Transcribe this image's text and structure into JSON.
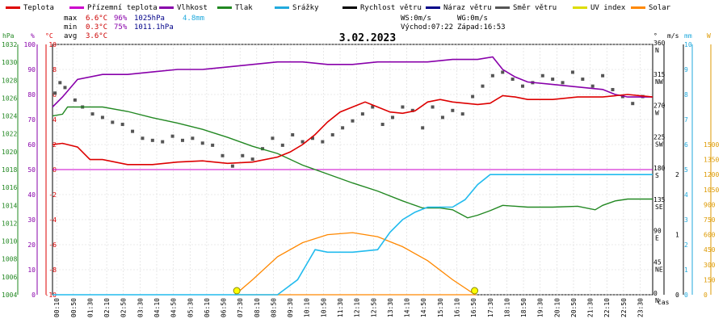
{
  "chart_data": {
    "type": "line",
    "title": "3.02.2023",
    "legend": [
      {
        "name": "Teplota",
        "color": "#dd0000"
      },
      {
        "name": "Přízemní teplota",
        "color": "#cc00cc"
      },
      {
        "name": "Vlhkost",
        "color": "#8800aa"
      },
      {
        "name": "Tlak",
        "color": "#228822"
      },
      {
        "name": "Srážky",
        "color": "#22aadd"
      },
      {
        "name": "Rychlost větru",
        "color": "#000000"
      },
      {
        "name": "Náraz větru",
        "color": "#000088"
      },
      {
        "name": "Směr větru",
        "color": "#555555"
      },
      {
        "name": "UV index",
        "color": "#dddd00"
      },
      {
        "name": "Solar",
        "color": "#ff8800"
      }
    ],
    "stats": {
      "max": {
        "label": "max",
        "temp": "6.6°C",
        "hum": "96%",
        "press": "1025hPa",
        "rain": "4.8mm"
      },
      "min": {
        "label": "min",
        "temp": "0.3°C",
        "hum": "75%",
        "press": "1011.1hPa"
      },
      "avg": {
        "label": "avg",
        "temp": "3.6°C"
      }
    },
    "info": {
      "ws": "WS:0m/s",
      "wg": "WG:0m/s",
      "sunrise": "Východ:07:22",
      "sunset": "Západ:16:53"
    },
    "axes": {
      "hpa": {
        "unit": "hPa",
        "ticks": [
          1004,
          1006,
          1008,
          1010,
          1012,
          1014,
          1016,
          1018,
          1020,
          1022,
          1024,
          1026,
          1028,
          1030,
          1032
        ]
      },
      "pct": {
        "unit": "%",
        "ticks": [
          0,
          10,
          20,
          30,
          40,
          50,
          60,
          70,
          80,
          90,
          100
        ]
      },
      "temp": {
        "unit": "°C",
        "ticks": [
          -10,
          -8,
          -6,
          -4,
          -2,
          0,
          2,
          4,
          6,
          8,
          10
        ]
      },
      "deg": {
        "unit": "°",
        "ticks": [
          "0",
          "45",
          "90",
          "135",
          "180",
          "225",
          "270",
          "315",
          "360"
        ],
        "dirs": [
          "N",
          "NE",
          "E",
          "SE",
          "S",
          "SW",
          "W",
          "NW",
          "N"
        ]
      },
      "ms": {
        "unit": "m/s",
        "ticks": [
          0,
          1,
          2
        ]
      },
      "mm": {
        "unit": "mm",
        "ticks": [
          0,
          1,
          2,
          3,
          4,
          5,
          6,
          7,
          8,
          9,
          10
        ]
      },
      "w": {
        "unit": "W",
        "ticks": [
          0,
          150,
          300,
          450,
          600,
          750,
          900,
          1050,
          1200,
          1350,
          1500
        ]
      },
      "xlabel": "čas",
      "xticks": [
        "00:10",
        "00:50",
        "01:30",
        "02:10",
        "02:50",
        "03:30",
        "04:10",
        "04:50",
        "05:30",
        "06:10",
        "06:50",
        "07:30",
        "08:10",
        "08:50",
        "09:30",
        "10:10",
        "10:50",
        "11:30",
        "12:10",
        "12:50",
        "13:30",
        "14:10",
        "14:50",
        "15:30",
        "16:10",
        "16:50",
        "17:30",
        "18:10",
        "18:50",
        "19:30",
        "20:10",
        "20:50",
        "21:30",
        "22:10",
        "22:50",
        "23:30"
      ]
    },
    "series": {
      "temp": [
        [
          0,
          2.0
        ],
        [
          0.4,
          2.1
        ],
        [
          1,
          1.8
        ],
        [
          1.5,
          0.8
        ],
        [
          2,
          0.8
        ],
        [
          3,
          0.4
        ],
        [
          4,
          0.4
        ],
        [
          5,
          0.6
        ],
        [
          6,
          0.7
        ],
        [
          7,
          0.5
        ],
        [
          8,
          0.6
        ],
        [
          9,
          1.0
        ],
        [
          9.5,
          1.4
        ],
        [
          10,
          2.0
        ],
        [
          10.5,
          2.8
        ],
        [
          11,
          3.8
        ],
        [
          11.5,
          4.6
        ],
        [
          12,
          5.0
        ],
        [
          12.5,
          5.4
        ],
        [
          13,
          5.0
        ],
        [
          13.5,
          4.6
        ],
        [
          14,
          4.5
        ],
        [
          14.5,
          4.7
        ],
        [
          15,
          5.4
        ],
        [
          15.5,
          5.6
        ],
        [
          16,
          5.4
        ],
        [
          17,
          5.2
        ],
        [
          17.5,
          5.3
        ],
        [
          18,
          5.9
        ],
        [
          18.5,
          5.8
        ],
        [
          19,
          5.6
        ],
        [
          20,
          5.6
        ],
        [
          21,
          5.8
        ],
        [
          22,
          5.8
        ],
        [
          23,
          6.0
        ],
        [
          24,
          5.8
        ]
      ],
      "ground_temp": [
        [
          0,
          0
        ],
        [
          24,
          0
        ]
      ],
      "humidity": [
        [
          0,
          75
        ],
        [
          0.4,
          79
        ],
        [
          1,
          86
        ],
        [
          2,
          88
        ],
        [
          3,
          88
        ],
        [
          4,
          89
        ],
        [
          5,
          90
        ],
        [
          6,
          90
        ],
        [
          7,
          91
        ],
        [
          8,
          92
        ],
        [
          9,
          93
        ],
        [
          10,
          93
        ],
        [
          11,
          92
        ],
        [
          12,
          92
        ],
        [
          13,
          93
        ],
        [
          14,
          93
        ],
        [
          15,
          93
        ],
        [
          16,
          94
        ],
        [
          17,
          94
        ],
        [
          17.6,
          95
        ],
        [
          18,
          90
        ],
        [
          18.5,
          87
        ],
        [
          19,
          85
        ],
        [
          20,
          84
        ],
        [
          21,
          83
        ],
        [
          22,
          82
        ],
        [
          22.5,
          80
        ],
        [
          23,
          79
        ],
        [
          24,
          79
        ]
      ],
      "pressure": [
        [
          0,
          1024
        ],
        [
          0.4,
          1024.2
        ],
        [
          0.6,
          1025
        ],
        [
          1,
          1025
        ],
        [
          2,
          1025
        ],
        [
          3,
          1024.5
        ],
        [
          4,
          1023.8
        ],
        [
          5,
          1023.2
        ],
        [
          6,
          1022.5
        ],
        [
          7,
          1021.6
        ],
        [
          8,
          1020.6
        ],
        [
          9,
          1019.8
        ],
        [
          10,
          1018.5
        ],
        [
          11,
          1017.5
        ],
        [
          12,
          1016.5
        ],
        [
          13,
          1015.6
        ],
        [
          14,
          1014.5
        ],
        [
          14.8,
          1013.7
        ],
        [
          15.5,
          1013.7
        ],
        [
          16,
          1013.5
        ],
        [
          16.6,
          1012.6
        ],
        [
          17,
          1012.9
        ],
        [
          17.5,
          1013.4
        ],
        [
          18,
          1014.0
        ],
        [
          19,
          1013.8
        ],
        [
          20,
          1013.8
        ],
        [
          21,
          1013.9
        ],
        [
          21.7,
          1013.5
        ],
        [
          22,
          1014.0
        ],
        [
          22.5,
          1014.5
        ],
        [
          23,
          1014.7
        ],
        [
          24,
          1014.7
        ]
      ],
      "rain": [
        [
          0,
          0
        ],
        [
          7,
          0
        ],
        [
          9,
          0
        ],
        [
          9.8,
          0.6
        ],
        [
          10.5,
          1.8
        ],
        [
          11,
          1.7
        ],
        [
          12,
          1.7
        ],
        [
          13,
          1.8
        ],
        [
          13.5,
          2.5
        ],
        [
          14,
          3.0
        ],
        [
          14.5,
          3.3
        ],
        [
          15,
          3.5
        ],
        [
          16,
          3.5
        ],
        [
          16.5,
          3.8
        ],
        [
          17,
          4.4
        ],
        [
          17.5,
          4.8
        ],
        [
          18,
          4.8
        ],
        [
          24,
          4.8
        ]
      ],
      "solar": [
        [
          7.3,
          0
        ],
        [
          8,
          150
        ],
        [
          9,
          380
        ],
        [
          10,
          520
        ],
        [
          11,
          600
        ],
        [
          12,
          620
        ],
        [
          13,
          580
        ],
        [
          14,
          480
        ],
        [
          15,
          340
        ],
        [
          16,
          150
        ],
        [
          16.9,
          0
        ]
      ],
      "wind_dir": [
        [
          0.1,
          290
        ],
        [
          0.3,
          305
        ],
        [
          0.5,
          298
        ],
        [
          0.9,
          280
        ],
        [
          1.2,
          270
        ],
        [
          1.6,
          260
        ],
        [
          2.0,
          255
        ],
        [
          2.4,
          248
        ],
        [
          2.8,
          245
        ],
        [
          3.2,
          235
        ],
        [
          3.6,
          225
        ],
        [
          4.0,
          222
        ],
        [
          4.4,
          220
        ],
        [
          4.8,
          228
        ],
        [
          5.2,
          222
        ],
        [
          5.6,
          225
        ],
        [
          6.0,
          218
        ],
        [
          6.4,
          215
        ],
        [
          6.8,
          200
        ],
        [
          7.2,
          185
        ],
        [
          7.6,
          200
        ],
        [
          8.0,
          195
        ],
        [
          8.4,
          210
        ],
        [
          8.8,
          225
        ],
        [
          9.2,
          215
        ],
        [
          9.6,
          230
        ],
        [
          10.0,
          220
        ],
        [
          10.4,
          225
        ],
        [
          10.8,
          220
        ],
        [
          11.2,
          230
        ],
        [
          11.6,
          240
        ],
        [
          12.0,
          250
        ],
        [
          12.4,
          260
        ],
        [
          12.8,
          270
        ],
        [
          13.2,
          245
        ],
        [
          13.6,
          255
        ],
        [
          14.0,
          270
        ],
        [
          14.4,
          265
        ],
        [
          14.8,
          240
        ],
        [
          15.2,
          270
        ],
        [
          15.6,
          255
        ],
        [
          16.0,
          265
        ],
        [
          16.4,
          260
        ],
        [
          16.8,
          285
        ],
        [
          17.2,
          300
        ],
        [
          17.6,
          315
        ],
        [
          18.0,
          320
        ],
        [
          18.4,
          310
        ],
        [
          18.8,
          300
        ],
        [
          19.2,
          305
        ],
        [
          19.6,
          315
        ],
        [
          20.0,
          310
        ],
        [
          20.4,
          305
        ],
        [
          20.8,
          320
        ],
        [
          21.2,
          310
        ],
        [
          21.6,
          300
        ],
        [
          22.0,
          315
        ],
        [
          22.4,
          295
        ],
        [
          22.8,
          285
        ],
        [
          23.2,
          275
        ],
        [
          23.6,
          285
        ]
      ],
      "wind_speed": []
    }
  }
}
